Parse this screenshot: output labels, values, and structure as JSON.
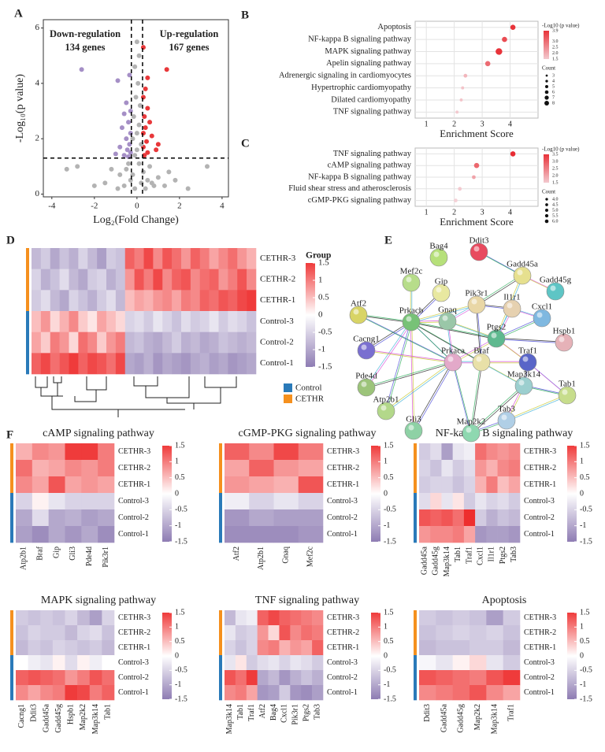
{
  "panel_labels": [
    "A",
    "B",
    "C",
    "D",
    "E",
    "F"
  ],
  "chart_data": [
    {
      "type": "scatter",
      "xlabel": "Log₂(Fold Change)",
      "ylabel": "-Log₁₀(p value)",
      "xlim": [
        -4.4,
        4.3
      ],
      "ylim": [
        -0.1,
        6.3
      ],
      "xticks": [
        -4,
        -2,
        0,
        2,
        4
      ],
      "yticks": [
        0,
        2,
        4,
        6
      ],
      "thresholds": {
        "x": [
          -0.263,
          0.263
        ],
        "y": 1.301
      },
      "series": [
        {
          "name": "Down-regulation",
          "label": "134 genes",
          "color": "#a58fc6",
          "x": [
            -2.6,
            -0.9,
            -0.5,
            -0.6,
            -0.4,
            -0.7,
            -0.3,
            -0.5,
            -0.35,
            -0.8,
            -0.45,
            -0.3,
            -1.0,
            -0.6,
            -0.4,
            -0.3,
            -0.35
          ],
          "y": [
            4.5,
            4.1,
            3.3,
            2.9,
            2.6,
            2.4,
            2.2,
            2.0,
            1.8,
            1.7,
            1.6,
            1.5,
            1.45,
            1.4,
            1.35,
            3.0,
            4.3
          ]
        },
        {
          "name": "Up-regulation",
          "label": "167 genes",
          "color": "#e8383a",
          "x": [
            1.4,
            0.5,
            0.4,
            0.3,
            0.5,
            0.35,
            0.6,
            0.4,
            0.3,
            0.7,
            0.45,
            0.3,
            0.9,
            0.5,
            0.35,
            1.0,
            0.3
          ],
          "y": [
            4.5,
            4.2,
            3.8,
            3.5,
            3.1,
            2.8,
            2.6,
            2.4,
            2.2,
            2.1,
            1.9,
            1.7,
            1.6,
            1.5,
            1.4,
            1.8,
            5.3
          ]
        },
        {
          "color": "#b3b3b3",
          "x": [
            0,
            0.1,
            -0.1,
            0.05,
            -0.05,
            0.15,
            -0.15,
            0.1,
            0,
            -0.2,
            0.2,
            0,
            -0.1,
            -2.8,
            -1.2,
            -0.8,
            -0.5,
            -0.3,
            0.3,
            0.6,
            1.0,
            1.3,
            3.3,
            -3.3,
            -1.5,
            -0.6,
            0.4,
            0.8,
            1.8,
            -2.0,
            2.4,
            0.2,
            -0.2,
            0.1,
            -0.1,
            0.5,
            -0.4,
            0.7,
            -0.9,
            1.5
          ],
          "y": [
            5.5,
            5.0,
            4.6,
            4.0,
            3.5,
            3.2,
            2.8,
            2.5,
            2.2,
            2.0,
            1.8,
            1.6,
            1.4,
            1.0,
            0.9,
            0.7,
            0.9,
            0.5,
            0.8,
            1.0,
            0.6,
            0.3,
            1.0,
            0.9,
            0.4,
            0.3,
            0.2,
            0.3,
            0.5,
            0.3,
            0.2,
            0.4,
            0.7,
            1.1,
            0.2,
            0.5,
            1.1,
            0.4,
            0.2,
            0.8
          ]
        }
      ]
    },
    {
      "type": "bubble",
      "categories": [
        "Apoptosis",
        "NF-kappa B signaling pathway",
        "MAPK signaling pathway",
        "Apelin signaling pathway",
        "Adrenergic signaling in cardiomyocytes",
        "Hypertrophic cardiomyopathy",
        "Dilated cardiomyopathy",
        "TNF signaling pathway"
      ],
      "values": [
        4.1,
        3.8,
        3.6,
        3.2,
        2.4,
        2.3,
        2.25,
        2.1
      ],
      "count": [
        6,
        6,
        8,
        6,
        4,
        3,
        3,
        3
      ],
      "neglog10p": [
        3.9,
        3.5,
        3.9,
        3.0,
        1.8,
        1.6,
        1.6,
        1.5
      ],
      "xlim": [
        0.6,
        5.0
      ],
      "xticks": [
        1,
        2,
        3,
        4
      ],
      "xlabel": "Enrichment Score",
      "color_legend": {
        "title": "-Log10 (p value)",
        "low_color": "#f3c9cf",
        "high_color": "#e8333a",
        "ticks": [
          3.9,
          {
            "value": 3.0,
            "label": "3.0"
          },
          2.5,
          {
            "value": 2.0,
            "label": "2.0"
          },
          1.5
        ]
      },
      "size_legend": {
        "title": "Count",
        "ticks": [
          3,
          4,
          5,
          6,
          7,
          8
        ]
      }
    },
    {
      "type": "bubble",
      "categories": [
        "TNF signaling pathway",
        "cAMP signaling pathway",
        "NF-kappa B signaling pathway",
        "Fluid shear stress and atherosclerosis",
        "cGMP-PKG signaling pathway"
      ],
      "values": [
        4.1,
        2.8,
        2.7,
        2.2,
        2.05
      ],
      "count": [
        6,
        6,
        4,
        4,
        4
      ],
      "neglog10p": [
        3.6,
        2.8,
        2.0,
        1.5,
        1.4
      ],
      "xlim": [
        0.6,
        5.0
      ],
      "xticks": [
        1,
        2,
        3,
        4
      ],
      "xlabel": "Enrichment Score",
      "color_legend": {
        "title": "-Log10 (p value)",
        "low_color": "#f3c9cf",
        "high_color": "#e8333a",
        "ticks": [
          3.5,
          {
            "value": 3.0,
            "label": "3.0"
          },
          2.5,
          {
            "value": 2.0,
            "label": "2.0"
          },
          1.5
        ]
      },
      "size_legend": {
        "title": "Count",
        "ticks": [
          {
            "value": 4,
            "label": "4.0"
          },
          4.5,
          {
            "value": 5,
            "label": "5.0"
          },
          5.5,
          {
            "value": 6,
            "label": "6.0"
          }
        ]
      }
    },
    {
      "type": "heatmap",
      "rows": [
        "CETHR-3",
        "CETHR-2",
        "CETHR-1",
        "Control-3",
        "Control-2",
        "Control-1"
      ],
      "values": [
        [
          -0.8,
          -0.6,
          -1.0,
          -0.7,
          -0.9,
          -0.5,
          -0.8,
          -1.1,
          -0.6,
          -0.7,
          1.2,
          1.0,
          1.4,
          0.9,
          1.3,
          1.1,
          0.8,
          1.2,
          1.0,
          0.7,
          0.9,
          1.1,
          0.8,
          0.6
        ],
        [
          -0.5,
          -0.9,
          -0.7,
          -0.4,
          -0.8,
          -1.0,
          -0.6,
          -0.5,
          -0.9,
          -0.7,
          0.8,
          1.3,
          1.0,
          1.4,
          0.9,
          1.2,
          1.3,
          0.9,
          1.1,
          1.2,
          0.8,
          1.0,
          1.3,
          0.9
        ],
        [
          -0.6,
          -0.4,
          -0.8,
          -1.0,
          -0.5,
          -0.7,
          -0.9,
          -0.6,
          -0.4,
          -0.8,
          0.5,
          0.7,
          0.6,
          0.8,
          0.9,
          0.7,
          1.0,
          0.9,
          1.2,
          1.1,
          1.3,
          1.2,
          1.4,
          1.5
        ],
        [
          0.5,
          0.8,
          0.3,
          0.6,
          0.9,
          0.4,
          0.2,
          0.7,
          0.5,
          0.3,
          -0.5,
          -0.4,
          -0.6,
          -0.3,
          -0.5,
          -0.7,
          -0.4,
          -0.6,
          -0.5,
          -0.3,
          -0.6,
          -0.4,
          -0.5,
          -0.7
        ],
        [
          0.7,
          0.4,
          1.0,
          0.8,
          0.3,
          1.1,
          0.9,
          0.4,
          0.8,
          1.0,
          -0.8,
          -0.7,
          -0.9,
          -1.0,
          -0.8,
          -0.6,
          -0.9,
          -0.8,
          -1.0,
          -0.9,
          -0.7,
          -0.8,
          -0.9,
          -0.8
        ],
        [
          1.2,
          1.4,
          1.1,
          1.3,
          1.5,
          1.2,
          1.4,
          1.3,
          1.1,
          1.4,
          -1.0,
          -1.1,
          -0.9,
          -1.2,
          -1.0,
          -1.1,
          -1.2,
          -1.0,
          -0.9,
          -1.1,
          -1.0,
          -1.2,
          -1.1,
          -1.0
        ]
      ],
      "colors": [
        "#8e7cb3",
        "#ffffff",
        "#ef3b3b"
      ],
      "colorbar_title": "Group",
      "colorbar_ticks": [
        1.5,
        1,
        0.5,
        0,
        -0.5,
        -1,
        -1.5
      ],
      "groups": [
        {
          "name": "Control",
          "color": "#2a7ab9"
        },
        {
          "name": "CETHR",
          "color": "#f5901e"
        }
      ]
    },
    {
      "type": "heatmap",
      "title": "cAMP signaling pathway",
      "rows": [
        "CETHR-3",
        "CETHR-2",
        "CETHR-1",
        "Control-3",
        "Control-2",
        "Control-1"
      ],
      "columns": [
        "Atp2b1",
        "Braf",
        "Gip",
        "Gli3",
        "Pde4d",
        "Pik3r1"
      ],
      "values": [
        [
          0.6,
          0.9,
          0.8,
          1.5,
          1.5,
          1.0
        ],
        [
          1.1,
          0.6,
          0.7,
          0.9,
          0.8,
          1.0
        ],
        [
          0.9,
          0.7,
          1.3,
          0.7,
          0.8,
          0.7
        ],
        [
          -0.5,
          0.1,
          -0.3,
          -0.5,
          -0.5,
          -0.5
        ],
        [
          -1.0,
          -0.4,
          -1.0,
          -0.9,
          -1.1,
          -1.0
        ],
        [
          -1.1,
          -1.3,
          -1.0,
          -1.2,
          -1.0,
          -1.3
        ]
      ],
      "colors": [
        "#8e7cb3",
        "#ffffff",
        "#ef3b3b"
      ],
      "colorbar_ticks": [
        1.5,
        1,
        0.5,
        0,
        -0.5,
        -1,
        -1.5
      ]
    },
    {
      "type": "heatmap",
      "title": "cGMP-PKG signaling pathway",
      "rows": [
        "CETHR-3",
        "CETHR-2",
        "CETHR-1",
        "Control-3",
        "Control-2",
        "Control-1"
      ],
      "columns": [
        "Atf2",
        "Atp2b1",
        "Gnaq",
        "Mef2c"
      ],
      "values": [
        [
          1.2,
          0.9,
          1.4,
          1.0
        ],
        [
          0.7,
          1.2,
          0.8,
          0.7
        ],
        [
          0.8,
          0.7,
          0.6,
          1.3
        ],
        [
          -0.2,
          -0.5,
          -0.3,
          -0.5
        ],
        [
          -1.2,
          -1.0,
          -1.1,
          -1.1
        ],
        [
          -1.3,
          -1.3,
          -1.3,
          -1.2
        ]
      ],
      "colors": [
        "#8e7cb3",
        "#ffffff",
        "#ef3b3b"
      ],
      "colorbar_ticks": [
        1.5,
        1,
        0.5,
        0,
        -0.5,
        -1,
        -1.5
      ]
    },
    {
      "type": "heatmap",
      "title": "NF-kappa B signaling pathway",
      "rows": [
        "CETHR-3",
        "CETHR-2",
        "CETHR-1",
        "Control-3",
        "Control-2",
        "Control-1"
      ],
      "columns": [
        "Gadd45a",
        "Gadd45g",
        "Map3k14",
        "Tab1",
        "Traf1",
        "Cxcl1",
        "Il1r1",
        "Ptgs2",
        "Tab3"
      ],
      "values": [
        [
          -0.6,
          -0.4,
          -1.1,
          -0.3,
          -0.2,
          1.1,
          0.9,
          0.8,
          0.9
        ],
        [
          -0.5,
          -0.7,
          -0.3,
          -0.6,
          -0.4,
          0.8,
          0.6,
          0.9,
          1.0
        ],
        [
          -0.6,
          -0.5,
          -0.5,
          -0.7,
          -0.5,
          0.6,
          1.0,
          0.5,
          0.7
        ],
        [
          -0.4,
          0.3,
          -0.3,
          0.2,
          -0.6,
          -0.3,
          -0.5,
          -0.4,
          -0.6
        ],
        [
          1.3,
          1.2,
          1.3,
          1.1,
          1.6,
          -0.6,
          -0.9,
          -0.7,
          -0.8
        ],
        [
          0.8,
          0.9,
          0.9,
          1.0,
          0.7,
          -1.2,
          -1.1,
          -1.1,
          -1.2
        ]
      ],
      "colors": [
        "#8e7cb3",
        "#ffffff",
        "#ef3b3b"
      ],
      "colorbar_ticks": [
        1.5,
        1,
        0.5,
        0,
        -0.5,
        -1,
        -1.5
      ]
    },
    {
      "type": "heatmap",
      "title": "MAPK signaling pathway",
      "rows": [
        "CETHR-3",
        "CETHR-2",
        "CETHR-1",
        "Control-3",
        "Control-2",
        "Control-1"
      ],
      "columns": [
        "Cacng1",
        "Ddit3",
        "Gadd45a",
        "Gadd45g",
        "Hspb1",
        "Map2k2",
        "Map3k14",
        "Tab1"
      ],
      "values": [
        [
          -0.6,
          -0.7,
          -0.6,
          -0.7,
          -0.5,
          -0.8,
          -1.1,
          -0.5
        ],
        [
          -0.7,
          -0.5,
          -0.6,
          -0.6,
          -0.8,
          -0.5,
          -0.4,
          -0.7
        ],
        [
          -0.8,
          -0.6,
          -0.7,
          -0.5,
          -0.6,
          -0.7,
          -0.6,
          -0.8
        ],
        [
          0,
          -0.2,
          -0.3,
          0.1,
          -0.4,
          0.1,
          -0.2,
          0
        ],
        [
          1.2,
          1.3,
          1.2,
          1.1,
          0.8,
          1.0,
          1.3,
          1.1
        ],
        [
          0.9,
          0.7,
          0.9,
          1.0,
          1.5,
          1.4,
          1.0,
          1.2
        ]
      ],
      "colors": [
        "#8e7cb3",
        "#ffffff",
        "#ef3b3b"
      ],
      "colorbar_ticks": [
        1.5,
        1,
        0.5,
        0,
        -0.5,
        -1,
        -1.5
      ]
    },
    {
      "type": "heatmap",
      "title": "TNF signaling pathway",
      "rows": [
        "CETHR-3",
        "CETHR-2",
        "CETHR-1",
        "Control-3",
        "Control-2",
        "Control-1"
      ],
      "columns": [
        "Map3k14",
        "Tab1",
        "Traf1",
        "Atf2",
        "Bag4",
        "Cxcl1",
        "Pik3r1",
        "Ptgs2",
        "Tab3"
      ],
      "values": [
        [
          -0.8,
          -0.3,
          -0.2,
          1.2,
          1.4,
          1.2,
          1.1,
          1.0,
          0.9
        ],
        [
          -0.3,
          -0.6,
          -0.5,
          0.8,
          0.3,
          1.3,
          0.9,
          1.1,
          1.0
        ],
        [
          -0.5,
          -0.7,
          -0.5,
          0.9,
          1.0,
          0.6,
          0.8,
          0.7,
          1.2
        ],
        [
          -0.3,
          0.2,
          -0.6,
          -0.4,
          -0.3,
          -0.5,
          -0.3,
          -0.4,
          -0.6
        ],
        [
          1.3,
          1.1,
          1.5,
          -1.0,
          -0.8,
          -1.2,
          -0.9,
          -0.7,
          -0.9
        ],
        [
          0.9,
          1.0,
          0.7,
          -1.2,
          -1.1,
          -0.6,
          -1.2,
          -1.3,
          -1.1
        ]
      ],
      "colors": [
        "#8e7cb3",
        "#ffffff",
        "#ef3b3b"
      ],
      "colorbar_ticks": [
        1.5,
        1,
        0.5,
        0,
        -0.5,
        -1,
        -1.5
      ]
    },
    {
      "type": "heatmap",
      "title": "Apoptosis",
      "rows": [
        "CETHR-3",
        "CETHR-2",
        "CETHR-1",
        "Control-3",
        "Control-2",
        "Control-1"
      ],
      "columns": [
        "Ddit3",
        "Gadd45a",
        "Gadd45g",
        "Map2k2",
        "Map3k14",
        "Traf1"
      ],
      "values": [
        [
          -0.6,
          -0.7,
          -0.6,
          -0.7,
          -1.1,
          -0.6
        ],
        [
          -0.7,
          -0.6,
          -0.5,
          -0.6,
          -0.5,
          -0.7
        ],
        [
          -0.8,
          -0.7,
          -0.7,
          -0.6,
          -0.6,
          -0.8
        ],
        [
          -0.1,
          -0.3,
          0.1,
          0.3,
          -0.3,
          -0.6
        ],
        [
          1.3,
          1.2,
          1.1,
          1.0,
          1.3,
          1.5
        ],
        [
          0.9,
          1.0,
          1.1,
          1.3,
          0.9,
          0.7
        ]
      ],
      "colors": [
        "#8e7cb3",
        "#ffffff",
        "#ef3b3b"
      ],
      "colorbar_ticks": [
        1.5,
        1,
        0.5,
        0,
        -0.5,
        -1,
        -1.5
      ]
    }
  ],
  "network": {
    "nodes": [
      {
        "label": "Bag4",
        "color": "#b6e07a"
      },
      {
        "label": "Ddit3",
        "color": "#e84a5f"
      },
      {
        "label": "Gadd45a",
        "color": "#e6e08f"
      },
      {
        "label": "Gadd45g",
        "color": "#5ec5c5"
      },
      {
        "label": "Mef2c",
        "color": "#b7dd8a"
      },
      {
        "label": "Gip",
        "color": "#e8e8a0"
      },
      {
        "label": "Pik3r1",
        "color": "#e9d7a6"
      },
      {
        "label": "Il1r1",
        "color": "#e6d1b0"
      },
      {
        "label": "Cxcl1",
        "color": "#7fb8e0"
      },
      {
        "label": "Atf2",
        "color": "#d8d466"
      },
      {
        "label": "Prkacb",
        "color": "#77c277"
      },
      {
        "label": "Gnaq",
        "color": "#9ac7a8"
      },
      {
        "label": "Ptgs2",
        "color": "#5fb98f"
      },
      {
        "label": "Hspb1",
        "color": "#e6b2b8"
      },
      {
        "label": "Cacng1",
        "color": "#7a6fd0"
      },
      {
        "label": "Prkaca",
        "color": "#e3a9c9"
      },
      {
        "label": "Braf",
        "color": "#e8e0a8"
      },
      {
        "label": "Traf1",
        "color": "#5965c8"
      },
      {
        "label": "Pde4d",
        "color": "#9cc47a"
      },
      {
        "label": "Map3k14",
        "color": "#9ccfcf"
      },
      {
        "label": "Tab1",
        "color": "#c7dd8c"
      },
      {
        "label": "Atp2b1",
        "color": "#b3d88a"
      },
      {
        "label": "Gli3",
        "color": "#8ed1a5"
      },
      {
        "label": "Map2k2",
        "color": "#8ed8b0"
      },
      {
        "label": "Tab3",
        "color": "#b0cfe6"
      }
    ]
  }
}
